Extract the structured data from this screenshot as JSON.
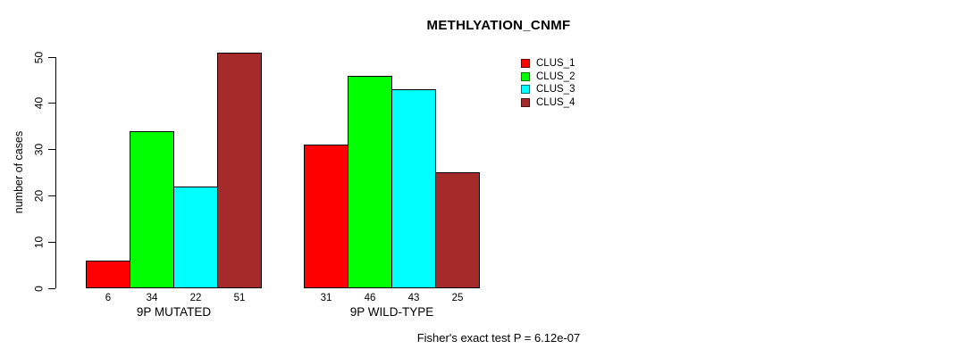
{
  "chart_data": {
    "type": "bar",
    "title": "METHLYATION_CNMF",
    "ylabel": "number of cases",
    "xlabel": "",
    "ylim": [
      0,
      50
    ],
    "yticks": [
      0,
      10,
      20,
      30,
      40,
      50
    ],
    "grid": false,
    "legend_position": "top-right",
    "groups": [
      "9P MUTATED",
      "9P WILD-TYPE"
    ],
    "series": [
      {
        "name": "CLUS_1",
        "color": "#FF0000",
        "values": [
          6,
          31
        ]
      },
      {
        "name": "CLUS_2",
        "color": "#00FF00",
        "values": [
          34,
          46
        ]
      },
      {
        "name": "CLUS_3",
        "color": "#00FFFF",
        "values": [
          22,
          43
        ]
      },
      {
        "name": "CLUS_4",
        "color": "#A52A2A",
        "values": [
          51,
          25
        ]
      }
    ],
    "bar_value_labels": [
      [
        6,
        34,
        22,
        51
      ],
      [
        31,
        46,
        43,
        25
      ]
    ],
    "footer": "Fisher's exact test P = 6.12e-07"
  }
}
